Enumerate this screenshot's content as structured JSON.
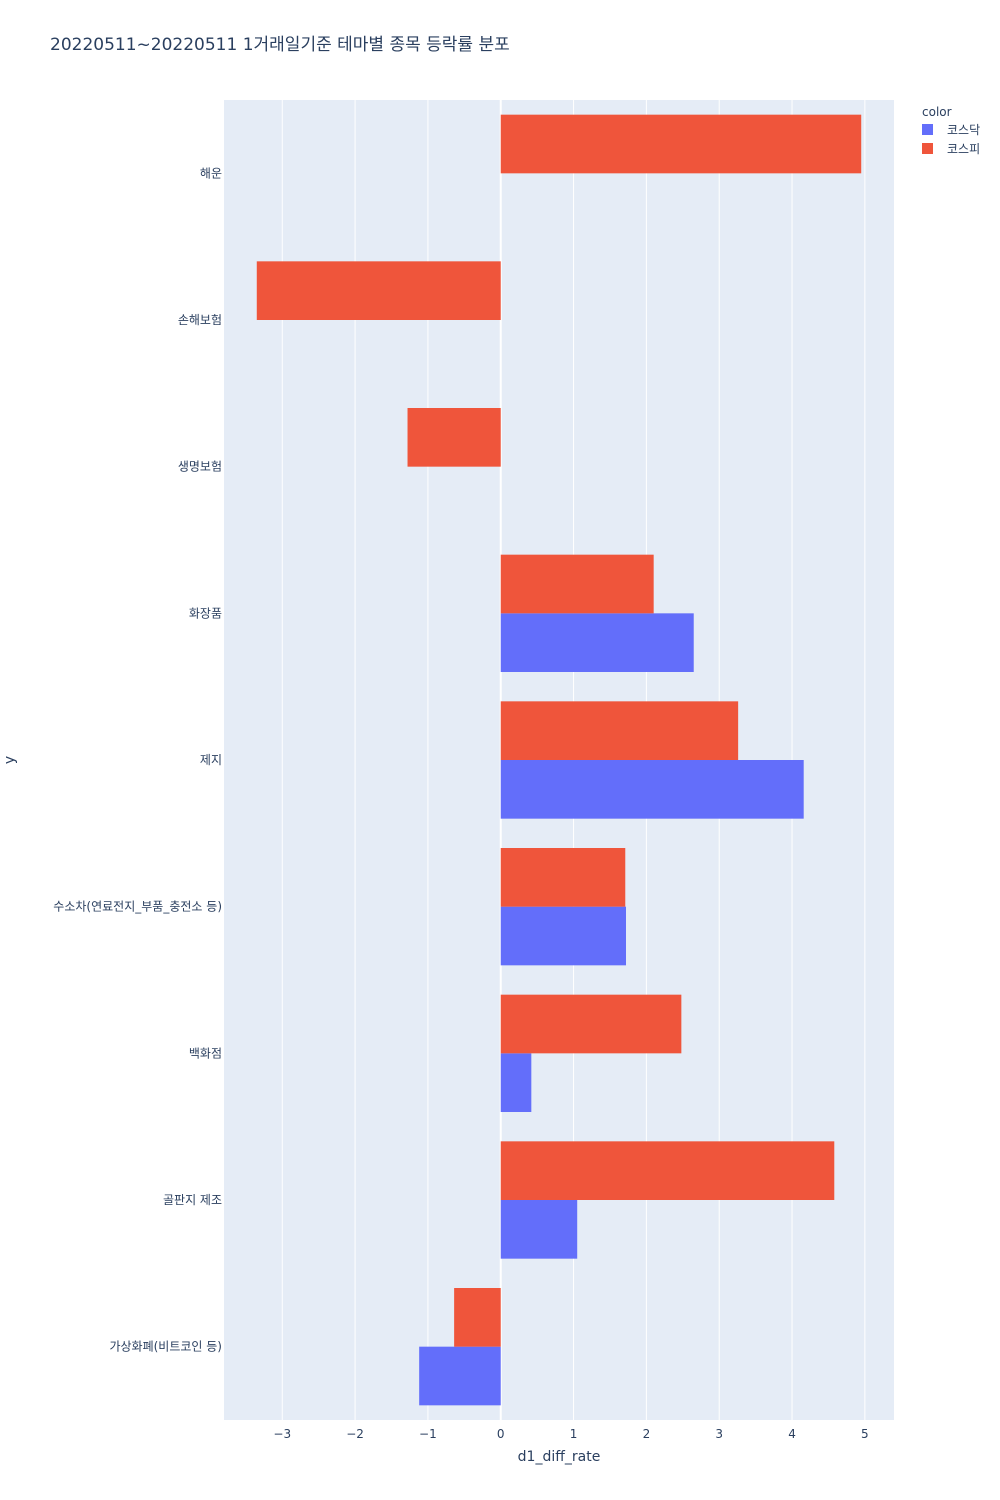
{
  "chart_data": {
    "type": "bar",
    "orientation": "horizontal",
    "title": "20220511~20220511 1거래일기준 테마별 종목 등락률 분포",
    "xlabel": "d1_diff_rate",
    "ylabel": "y",
    "xlim": [
      -3.8,
      5.4
    ],
    "xticks": [
      -3,
      -2,
      -1,
      0,
      1,
      2,
      3,
      4,
      5
    ],
    "xtick_labels": [
      "−3",
      "−2",
      "−1",
      "0",
      "1",
      "2",
      "3",
      "4",
      "5"
    ],
    "grid": true,
    "legend_title": "color",
    "legend_position": "top-right",
    "categories": [
      "해운",
      "손해보험",
      "생명보험",
      "화장품",
      "제지",
      "수소차(연료전지_부품_충전소 등)",
      "백화점",
      "골판지 제조",
      "가상화폐(비트코인 등)"
    ],
    "series": [
      {
        "name": "코스닥",
        "color": "#636efa",
        "values": [
          null,
          null,
          null,
          2.65,
          4.16,
          1.72,
          0.42,
          1.05,
          -1.12
        ]
      },
      {
        "name": "코스피",
        "color": "#ef553b",
        "values": [
          4.95,
          -3.35,
          -1.28,
          2.1,
          3.26,
          1.71,
          2.48,
          4.58,
          -0.64
        ]
      }
    ]
  }
}
